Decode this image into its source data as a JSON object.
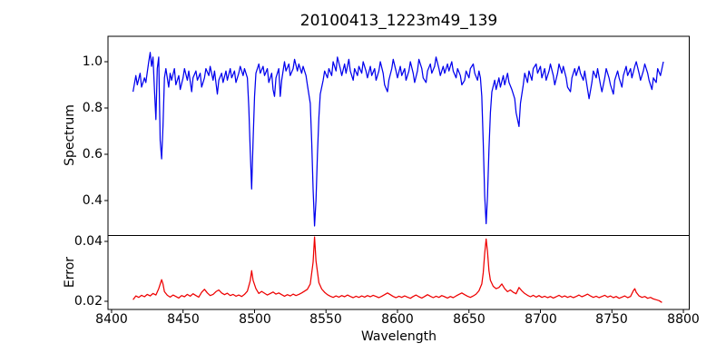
{
  "figure": {
    "background": "#ffffff"
  },
  "chart_data": [
    {
      "type": "line",
      "title": "20100413_1223m49_139",
      "ylabel": "Spectrum",
      "xlabel": "",
      "grid": false,
      "legend": "none",
      "xlim": [
        8397.5,
        8804.1
      ],
      "ylim": [
        0.249,
        1.1098
      ],
      "yticks": [
        0.4,
        0.6,
        0.8,
        1.0
      ],
      "ytick_labels": [
        "0.4",
        "0.6",
        "0.8",
        "1.0"
      ],
      "series": [
        {
          "name": "spectrum",
          "color": "#0000ee",
          "x": [
            8415,
            8417,
            8418,
            8420,
            8421,
            8423,
            8424,
            8426,
            8427,
            8428,
            8429,
            8430,
            8431,
            8432,
            8433,
            8434,
            8435,
            8436,
            8437,
            8438,
            8440,
            8441,
            8442,
            8444,
            8445,
            8447,
            8448,
            8450,
            8451,
            8453,
            8454,
            8456,
            8457,
            8459,
            8460,
            8462,
            8463,
            8465,
            8466,
            8468,
            8469,
            8471,
            8472,
            8474,
            8475,
            8477,
            8478,
            8480,
            8481,
            8483,
            8484,
            8486,
            8487,
            8489,
            8490,
            8492,
            8493,
            8495,
            8496,
            8497,
            8498,
            8499,
            8500,
            8501,
            8503,
            8504,
            8506,
            8507,
            8509,
            8510,
            8512,
            8513,
            8514,
            8515,
            8517,
            8518,
            8519,
            8521,
            8522,
            8524,
            8525,
            8527,
            8528,
            8530,
            8531,
            8533,
            8534,
            8536,
            8537,
            8539,
            8540,
            8541,
            8542,
            8543,
            8544,
            8545,
            8546,
            8548,
            8549,
            8551,
            8552,
            8554,
            8555,
            8557,
            8558,
            8560,
            8561,
            8563,
            8564,
            8566,
            8567,
            8569,
            8570,
            8572,
            8573,
            8575,
            8576,
            8578,
            8579,
            8581,
            8582,
            8584,
            8585,
            8587,
            8588,
            8590,
            8591,
            8593,
            8594,
            8596,
            8597,
            8599,
            8600,
            8602,
            8603,
            8605,
            8606,
            8608,
            8609,
            8611,
            8612,
            8614,
            8615,
            8617,
            8618,
            8620,
            8621,
            8623,
            8624,
            8626,
            8627,
            8629,
            8630,
            8632,
            8633,
            8635,
            8636,
            8638,
            8639,
            8641,
            8642,
            8644,
            8645,
            8647,
            8648,
            8650,
            8651,
            8653,
            8654,
            8656,
            8657,
            8658,
            8659,
            8660,
            8661,
            8662,
            8663,
            8664,
            8665,
            8666,
            8668,
            8669,
            8671,
            8672,
            8674,
            8675,
            8677,
            8678,
            8680,
            8682,
            8683,
            8685,
            8686,
            8688,
            8689,
            8691,
            8692,
            8694,
            8695,
            8697,
            8698,
            8700,
            8701,
            8703,
            8704,
            8706,
            8707,
            8709,
            8710,
            8712,
            8713,
            8715,
            8716,
            8718,
            8719,
            8721,
            8722,
            8724,
            8725,
            8727,
            8728,
            8730,
            8731,
            8733,
            8734,
            8736,
            8737,
            8739,
            8740,
            8742,
            8743,
            8745,
            8746,
            8748,
            8749,
            8751,
            8752,
            8754,
            8755,
            8757,
            8758,
            8760,
            8761,
            8763,
            8764,
            8766,
            8767,
            8769,
            8770,
            8772,
            8773,
            8775,
            8776,
            8778,
            8779,
            8781,
            8782,
            8784,
            8786
          ],
          "y": [
            0.87,
            0.94,
            0.9,
            0.95,
            0.89,
            0.93,
            0.91,
            1.0,
            1.04,
            0.98,
            1.02,
            0.88,
            0.75,
            0.97,
            1.02,
            0.66,
            0.58,
            0.72,
            0.93,
            0.97,
            0.89,
            0.95,
            0.92,
            0.97,
            0.9,
            0.94,
            0.88,
            0.93,
            0.97,
            0.92,
            0.96,
            0.87,
            0.93,
            0.96,
            0.92,
            0.95,
            0.89,
            0.93,
            0.97,
            0.94,
            0.98,
            0.92,
            0.96,
            0.86,
            0.92,
            0.95,
            0.91,
            0.96,
            0.92,
            0.97,
            0.93,
            0.96,
            0.91,
            0.95,
            0.98,
            0.94,
            0.97,
            0.93,
            0.8,
            0.62,
            0.45,
            0.66,
            0.85,
            0.95,
            0.99,
            0.95,
            0.98,
            0.94,
            0.97,
            0.91,
            0.95,
            0.88,
            0.85,
            0.93,
            0.97,
            0.85,
            0.92,
            1.0,
            0.96,
            0.99,
            0.94,
            0.97,
            1.01,
            0.96,
            0.99,
            0.95,
            0.98,
            0.94,
            0.9,
            0.82,
            0.65,
            0.45,
            0.29,
            0.4,
            0.6,
            0.76,
            0.86,
            0.92,
            0.96,
            0.93,
            0.97,
            0.94,
            1.0,
            0.96,
            1.02,
            0.97,
            0.94,
            0.99,
            0.95,
            1.01,
            0.96,
            0.92,
            0.97,
            0.94,
            0.98,
            0.95,
            1.0,
            0.96,
            0.93,
            0.98,
            0.94,
            0.97,
            0.92,
            0.96,
            1.0,
            0.95,
            0.9,
            0.87,
            0.92,
            0.97,
            1.01,
            0.96,
            0.93,
            0.98,
            0.94,
            0.97,
            0.92,
            0.96,
            1.0,
            0.95,
            0.91,
            0.96,
            1.01,
            0.97,
            0.93,
            0.91,
            0.96,
            0.99,
            0.95,
            0.98,
            1.02,
            0.97,
            0.94,
            0.98,
            0.95,
            0.99,
            0.96,
            1.0,
            0.96,
            0.93,
            0.97,
            0.94,
            0.9,
            0.92,
            0.96,
            0.93,
            0.97,
            0.99,
            0.95,
            0.92,
            0.96,
            0.93,
            0.85,
            0.65,
            0.42,
            0.3,
            0.42,
            0.62,
            0.78,
            0.87,
            0.92,
            0.88,
            0.93,
            0.89,
            0.94,
            0.9,
            0.95,
            0.91,
            0.88,
            0.84,
            0.78,
            0.72,
            0.82,
            0.9,
            0.95,
            0.91,
            0.96,
            0.92,
            0.97,
            0.99,
            0.95,
            0.98,
            0.93,
            0.97,
            0.92,
            0.96,
            0.99,
            0.94,
            0.9,
            0.95,
            0.99,
            0.95,
            0.98,
            0.93,
            0.89,
            0.87,
            0.93,
            0.97,
            0.94,
            0.98,
            0.95,
            0.92,
            0.96,
            0.88,
            0.84,
            0.91,
            0.96,
            0.93,
            0.97,
            0.9,
            0.87,
            0.93,
            0.97,
            0.93,
            0.9,
            0.86,
            0.92,
            0.96,
            0.93,
            0.89,
            0.94,
            0.98,
            0.94,
            0.97,
            0.93,
            0.98,
            1.0,
            0.95,
            0.92,
            0.96,
            0.99,
            0.95,
            0.92,
            0.88,
            0.93,
            0.91,
            0.97,
            0.94,
            1.0
          ]
        }
      ]
    },
    {
      "type": "line",
      "title": "",
      "ylabel": "Error",
      "xlabel": "Wavelength",
      "grid": false,
      "legend": "none",
      "xlim": [
        8397.5,
        8804.1
      ],
      "ylim": [
        0.01727,
        0.04197
      ],
      "yticks": [
        0.02,
        0.04
      ],
      "ytick_labels": [
        "0.02",
        "0.04"
      ],
      "xticks": [
        8400,
        8450,
        8500,
        8550,
        8600,
        8650,
        8700,
        8750,
        8800
      ],
      "xtick_labels": [
        "8400",
        "8450",
        "8500",
        "8550",
        "8600",
        "8650",
        "8700",
        "8750",
        "8800"
      ],
      "series": [
        {
          "name": "error",
          "color": "#ee0000",
          "x": [
            8415,
            8417,
            8419,
            8421,
            8423,
            8425,
            8427,
            8429,
            8431,
            8433,
            8435,
            8436,
            8437,
            8439,
            8441,
            8443,
            8445,
            8447,
            8449,
            8451,
            8453,
            8455,
            8457,
            8459,
            8461,
            8463,
            8465,
            8467,
            8469,
            8471,
            8473,
            8475,
            8477,
            8479,
            8481,
            8483,
            8485,
            8487,
            8489,
            8491,
            8493,
            8495,
            8497,
            8498,
            8499,
            8501,
            8503,
            8505,
            8507,
            8509,
            8511,
            8513,
            8515,
            8517,
            8519,
            8521,
            8523,
            8525,
            8527,
            8529,
            8531,
            8533,
            8535,
            8537,
            8539,
            8541,
            8542,
            8543,
            8545,
            8547,
            8549,
            8551,
            8553,
            8555,
            8557,
            8559,
            8561,
            8563,
            8565,
            8567,
            8569,
            8571,
            8573,
            8575,
            8577,
            8579,
            8581,
            8583,
            8585,
            8587,
            8589,
            8591,
            8593,
            8595,
            8597,
            8599,
            8601,
            8603,
            8605,
            8607,
            8609,
            8611,
            8613,
            8615,
            8617,
            8619,
            8621,
            8623,
            8625,
            8627,
            8629,
            8631,
            8633,
            8635,
            8637,
            8639,
            8641,
            8643,
            8645,
            8647,
            8649,
            8651,
            8653,
            8655,
            8657,
            8659,
            8660,
            8661,
            8662,
            8663,
            8664,
            8665,
            8667,
            8669,
            8671,
            8673,
            8675,
            8677,
            8679,
            8681,
            8683,
            8685,
            8687,
            8689,
            8691,
            8693,
            8695,
            8697,
            8699,
            8701,
            8703,
            8705,
            8707,
            8709,
            8711,
            8713,
            8715,
            8717,
            8719,
            8721,
            8723,
            8725,
            8727,
            8729,
            8731,
            8733,
            8735,
            8737,
            8739,
            8741,
            8743,
            8745,
            8747,
            8749,
            8751,
            8753,
            8755,
            8757,
            8759,
            8761,
            8763,
            8765,
            8766,
            8767,
            8769,
            8771,
            8773,
            8775,
            8777,
            8779,
            8781,
            8783,
            8785
          ],
          "y": [
            0.0205,
            0.0218,
            0.0213,
            0.022,
            0.0215,
            0.0223,
            0.0218,
            0.0226,
            0.0221,
            0.0242,
            0.0272,
            0.0258,
            0.0232,
            0.022,
            0.0214,
            0.0221,
            0.0216,
            0.0211,
            0.0219,
            0.0215,
            0.0223,
            0.0217,
            0.0225,
            0.0219,
            0.0214,
            0.023,
            0.024,
            0.0228,
            0.0219,
            0.0223,
            0.0232,
            0.0238,
            0.0228,
            0.0222,
            0.0227,
            0.0219,
            0.0223,
            0.0217,
            0.0221,
            0.0216,
            0.0223,
            0.0234,
            0.0268,
            0.0302,
            0.027,
            0.0242,
            0.0226,
            0.0233,
            0.0227,
            0.0221,
            0.0226,
            0.0231,
            0.0224,
            0.0228,
            0.0222,
            0.0217,
            0.0222,
            0.0218,
            0.0224,
            0.0219,
            0.0223,
            0.0228,
            0.0234,
            0.024,
            0.0258,
            0.033,
            0.0415,
            0.0335,
            0.0262,
            0.0241,
            0.023,
            0.0222,
            0.0217,
            0.0213,
            0.0218,
            0.0214,
            0.0219,
            0.0215,
            0.0221,
            0.0216,
            0.0212,
            0.0217,
            0.0213,
            0.0218,
            0.0214,
            0.0219,
            0.0215,
            0.022,
            0.0216,
            0.0212,
            0.0217,
            0.0222,
            0.0228,
            0.0222,
            0.0216,
            0.0212,
            0.0217,
            0.0213,
            0.0218,
            0.0214,
            0.021,
            0.0216,
            0.0221,
            0.0215,
            0.0211,
            0.0216,
            0.0222,
            0.0217,
            0.0212,
            0.0217,
            0.0213,
            0.0219,
            0.0215,
            0.0211,
            0.0216,
            0.0212,
            0.0218,
            0.0223,
            0.0228,
            0.0222,
            0.0217,
            0.0213,
            0.0218,
            0.0224,
            0.0235,
            0.0258,
            0.0295,
            0.036,
            0.0408,
            0.0365,
            0.0302,
            0.027,
            0.025,
            0.0242,
            0.0246,
            0.0258,
            0.0242,
            0.0232,
            0.0238,
            0.023,
            0.0225,
            0.0246,
            0.0235,
            0.0226,
            0.022,
            0.0215,
            0.022,
            0.0214,
            0.0219,
            0.0213,
            0.0217,
            0.0212,
            0.0216,
            0.0211,
            0.0215,
            0.022,
            0.0214,
            0.0218,
            0.0213,
            0.0217,
            0.0212,
            0.0216,
            0.0221,
            0.0215,
            0.0219,
            0.0224,
            0.0218,
            0.0213,
            0.0217,
            0.0212,
            0.0216,
            0.022,
            0.0214,
            0.0218,
            0.0212,
            0.0216,
            0.021,
            0.0214,
            0.0218,
            0.0212,
            0.0216,
            0.0235,
            0.0242,
            0.023,
            0.0218,
            0.0213,
            0.0216,
            0.021,
            0.0213,
            0.0208,
            0.0205,
            0.0202,
            0.0196
          ]
        }
      ]
    }
  ]
}
